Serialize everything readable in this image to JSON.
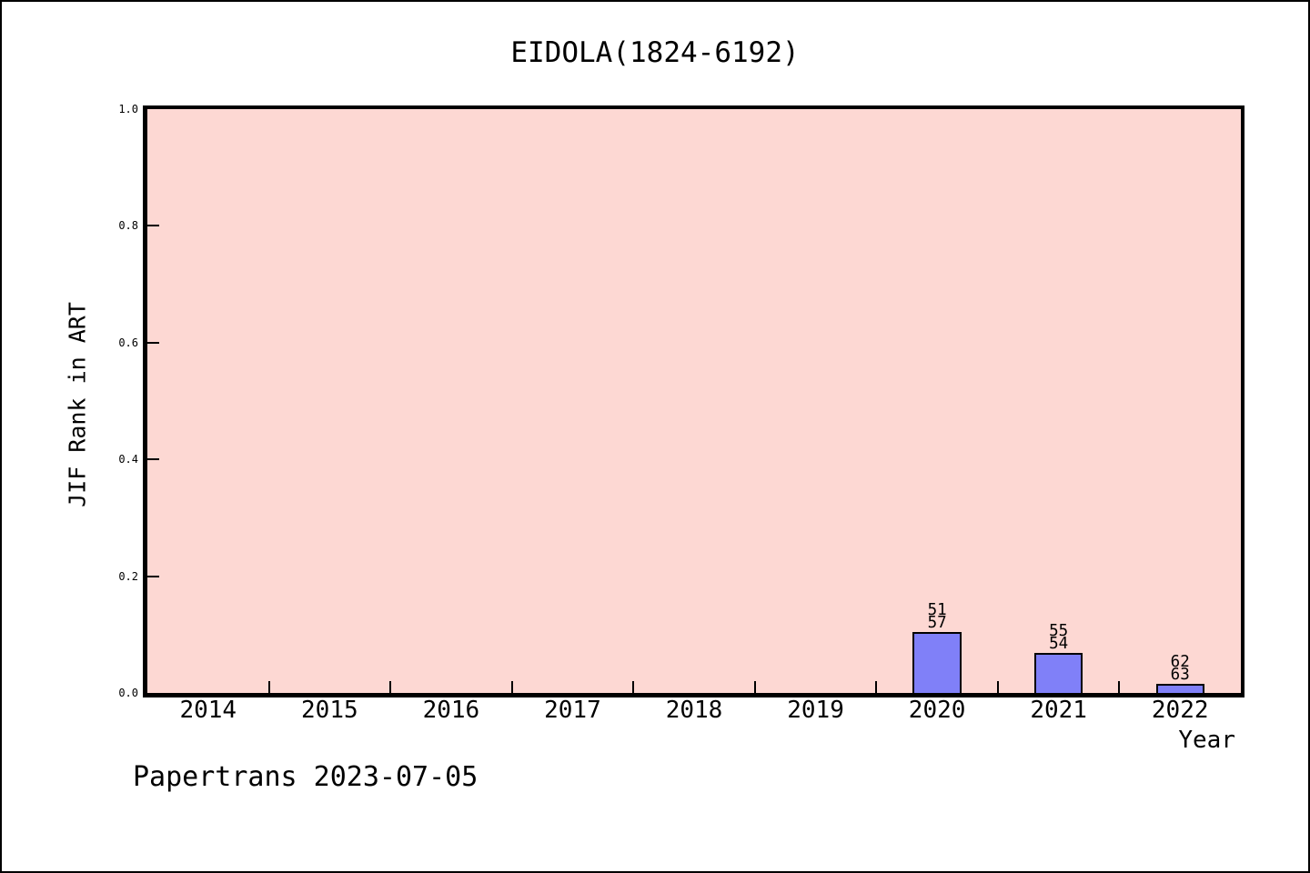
{
  "chart_data": {
    "type": "bar",
    "title": "EIDOLA(1824-6192)",
    "xlabel": "Year",
    "ylabel": "JIF Rank in ART",
    "footer": "Papertrans 2023-07-05",
    "ylim": [
      0.0,
      1.0
    ],
    "ytick_labels": [
      "0.0",
      "0.2",
      "0.4",
      "0.6",
      "0.8",
      "1.0"
    ],
    "categories": [
      "2014",
      "2015",
      "2016",
      "2017",
      "2018",
      "2019",
      "2020",
      "2021",
      "2022"
    ],
    "series": [
      {
        "name": "JIF Rank in ART",
        "values": [
          null,
          null,
          null,
          null,
          null,
          null,
          0.105,
          0.068,
          0.016
        ],
        "annotations": [
          null,
          null,
          null,
          null,
          null,
          null,
          [
            "51",
            "57"
          ],
          [
            "55",
            "54"
          ],
          [
            "62",
            "63"
          ]
        ]
      }
    ],
    "bar_width_fraction": 0.4,
    "grid": false,
    "legend_position": "none",
    "colors": {
      "plot_bg": "#fdd8d3",
      "bar_fill": "#8080f8",
      "bar_border": "#000000",
      "axis": "#000000",
      "text": "#000000",
      "figure_bg": "#ffffff"
    }
  }
}
